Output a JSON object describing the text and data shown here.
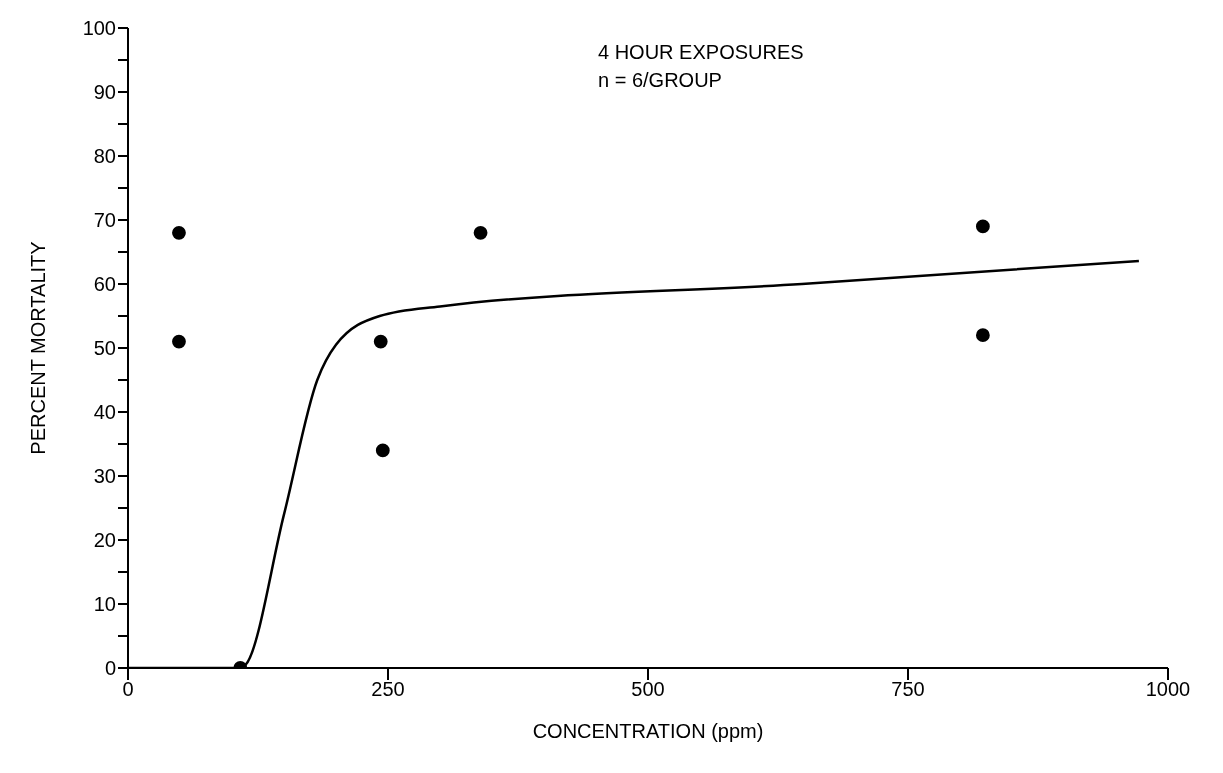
{
  "chart_data": {
    "type": "scatter",
    "xlabel": "CONCENTRATION (ppm)",
    "ylabel": "PERCENT MORTALITY",
    "annotations": [
      "4 HOUR EXPOSURES",
      "n = 6/GROUP"
    ],
    "xlim": [
      0,
      1000
    ],
    "xticks": [
      0,
      250,
      500,
      750,
      1000
    ],
    "ylim": [
      0,
      100
    ],
    "yticks": [
      0,
      {
        "value": 5,
        "label": null
      },
      10,
      {
        "value": 15,
        "label": null
      },
      20,
      {
        "value": 25,
        "label": null
      },
      30,
      {
        "value": 35,
        "label": null
      },
      40,
      {
        "value": 45,
        "label": null
      },
      50,
      {
        "value": 55,
        "label": null
      },
      60,
      {
        "value": 65,
        "label": null
      },
      70,
      {
        "value": 75,
        "label": null
      },
      80,
      {
        "value": 85,
        "label": null
      },
      90,
      {
        "value": 95,
        "label": null
      },
      100
    ],
    "grid": false,
    "line_style": "solid",
    "series": [
      {
        "marker": "circle",
        "color": "#000000",
        "x": [
          108,
          49,
          49,
          243,
          245,
          339,
          822,
          822
        ],
        "values": [
          0,
          68,
          51,
          51,
          34,
          68,
          69,
          52
        ]
      },
      {
        "type": "line",
        "marker": "none",
        "color": "#000000",
        "x": [
          0,
          108,
          113,
          150,
          182,
          200,
          242,
          300,
          648,
          972
        ],
        "values": [
          0,
          0,
          0.5,
          24,
          45,
          50.5,
          55,
          56.5,
          60,
          63.6
        ]
      }
    ]
  }
}
